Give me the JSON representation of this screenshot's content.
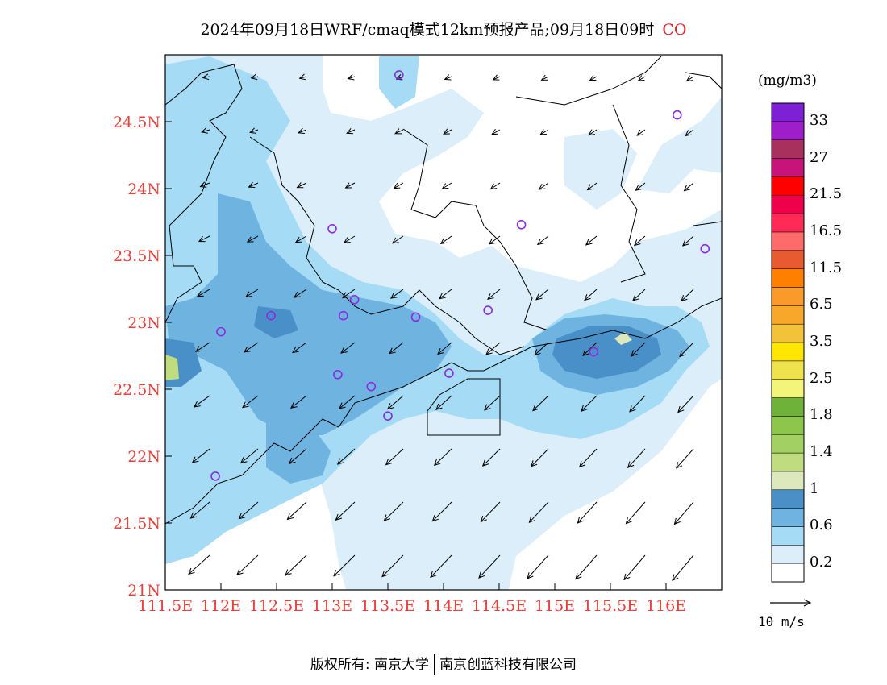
{
  "title": {
    "main": "2024年09月18日WRF/cmaq模式12km预报产品;09月18日09时",
    "pollutant": "CO"
  },
  "map": {
    "lon_range": [
      111.5,
      116.5
    ],
    "lat_range": [
      21.0,
      25.0
    ],
    "x_ticks": [
      "111.5E",
      "112E",
      "112.5E",
      "113E",
      "113.5E",
      "114E",
      "114.5E",
      "115E",
      "115.5E",
      "116E"
    ],
    "y_ticks": [
      "21N",
      "21.5N",
      "22N",
      "22.5N",
      "23N",
      "23.5N",
      "24N",
      "24.5N"
    ],
    "tick_color": "#e8403a",
    "station_color": "#8a2be2",
    "stations": [
      {
        "lon": 113.6,
        "lat": 24.85
      },
      {
        "lon": 116.1,
        "lat": 24.55
      },
      {
        "lon": 113.0,
        "lat": 23.7
      },
      {
        "lon": 114.7,
        "lat": 23.73
      },
      {
        "lon": 116.35,
        "lat": 23.55
      },
      {
        "lon": 113.2,
        "lat": 23.17
      },
      {
        "lon": 112.45,
        "lat": 23.05
      },
      {
        "lon": 113.1,
        "lat": 23.05
      },
      {
        "lon": 113.75,
        "lat": 23.04
      },
      {
        "lon": 114.4,
        "lat": 23.09
      },
      {
        "lon": 112.0,
        "lat": 22.93
      },
      {
        "lon": 115.35,
        "lat": 22.78
      },
      {
        "lon": 113.05,
        "lat": 22.61
      },
      {
        "lon": 114.05,
        "lat": 22.62
      },
      {
        "lon": 113.35,
        "lat": 22.52
      },
      {
        "lon": 113.5,
        "lat": 22.3
      },
      {
        "lon": 111.95,
        "lat": 21.85
      }
    ]
  },
  "colorbar": {
    "unit": "(mg/m3)",
    "colors": [
      "#ffffff",
      "#dbeefa",
      "#a5dbf5",
      "#6fb3e0",
      "#4a90c8",
      "#dde9bd",
      "#bfdc7f",
      "#a3d063",
      "#8cc64a",
      "#6fb23a",
      "#f3f57a",
      "#f0e24c",
      "#ffe600",
      "#f2c23a",
      "#f7a82b",
      "#f99a2a",
      "#ff7f00",
      "#e85a30",
      "#ff6a6a",
      "#ff2a55",
      "#f0004a",
      "#ff0000",
      "#c8147a",
      "#a8305c",
      "#9e1fc9",
      "#7d20d6"
    ],
    "labels": [
      "0.2",
      "0.6",
      "1",
      "1.4",
      "1.8",
      "2.5",
      "3.5",
      "6.5",
      "11.5",
      "16.5",
      "21.5",
      "27",
      "33"
    ]
  },
  "wind_reference": "10 m/s",
  "footer": {
    "left": "版权所有: 南京大学",
    "right": "南京创蓝科技有限公司"
  }
}
